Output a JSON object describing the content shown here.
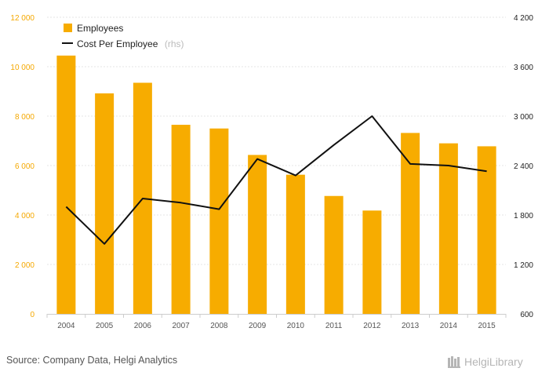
{
  "colors": {
    "bar": "#f7ac00",
    "line": "#111111",
    "grid": "#e6e6e6",
    "left_axis_text": "#f5a800",
    "right_axis_text": "#222222",
    "logo": "#b5b5b5"
  },
  "source": "Source: Company Data, Helgi Analytics",
  "logo": {
    "icon": "helgi-library-logo-icon",
    "text": "HelgiLibrary"
  },
  "chart_data": {
    "type": "bar",
    "title": "",
    "xlabel": "",
    "ylabel": "",
    "categories": [
      "2004",
      "2005",
      "2006",
      "2007",
      "2008",
      "2009",
      "2010",
      "2011",
      "2012",
      "2013",
      "2014",
      "2015"
    ],
    "series": [
      {
        "name": "Employees",
        "type": "bar",
        "axis": "left",
        "values": [
          10450,
          8920,
          9350,
          7650,
          7500,
          6430,
          5630,
          4770,
          4180,
          7320,
          6900,
          6780
        ]
      },
      {
        "name": "Cost Per Employee",
        "name_suffix": "(rhs)",
        "type": "line",
        "axis": "right",
        "values": [
          1900,
          1450,
          2000,
          1950,
          1870,
          2480,
          2280,
          2650,
          3000,
          2420,
          2400,
          2330
        ]
      }
    ],
    "ylim_left": [
      0,
      12000
    ],
    "yticks_left": [
      0,
      2000,
      4000,
      6000,
      8000,
      10000,
      12000
    ],
    "ytick_labels_left": [
      "0",
      "2 000",
      "4 000",
      "6 000",
      "8 000",
      "10 000",
      "12 000"
    ],
    "ylim_right": [
      600,
      4200
    ],
    "yticks_right": [
      600,
      1200,
      1800,
      2400,
      3000,
      3600,
      4200
    ],
    "ytick_labels_right": [
      "600",
      "1 200",
      "1 800",
      "2 400",
      "3 000",
      "3 600",
      "4 200"
    ],
    "grid": true,
    "legend_position": "top-left"
  }
}
